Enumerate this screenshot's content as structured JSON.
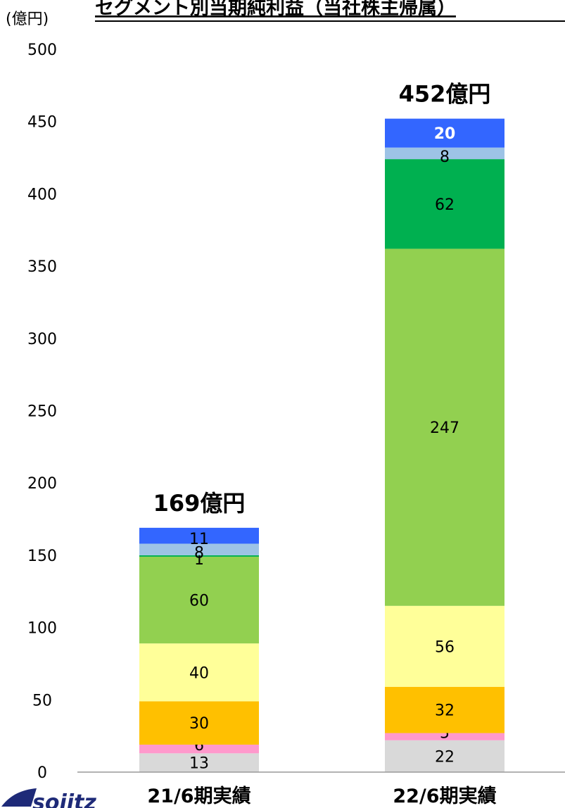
{
  "chart_data": {
    "type": "bar",
    "stacked": true,
    "title": "セグメント別当期純利益（当社株主帰属）",
    "unit_label": "(億円)",
    "categories": [
      "21/6期実績",
      "22/6期実績"
    ],
    "totals": [
      "169億円",
      "452億円"
    ],
    "ylim": [
      0,
      500
    ],
    "yticks": [
      0,
      50,
      100,
      150,
      200,
      250,
      300,
      350,
      400,
      450,
      500
    ],
    "grid": false,
    "series": [
      {
        "color": "#d9d9d9",
        "values": [
          13,
          22
        ]
      },
      {
        "color": "#ff99cc",
        "values": [
          6,
          5
        ]
      },
      {
        "color": "#ffc000",
        "values": [
          30,
          32
        ]
      },
      {
        "color": "#ffff99",
        "values": [
          40,
          56
        ]
      },
      {
        "color": "#92d050",
        "values": [
          60,
          247
        ]
      },
      {
        "color": "#00b050",
        "values": [
          1,
          62
        ]
      },
      {
        "color": "#9dc3e6",
        "values": [
          8,
          8
        ]
      },
      {
        "color": "#3366ff",
        "values": [
          11,
          20
        ]
      }
    ]
  },
  "logo": {
    "text": "sojitz"
  }
}
